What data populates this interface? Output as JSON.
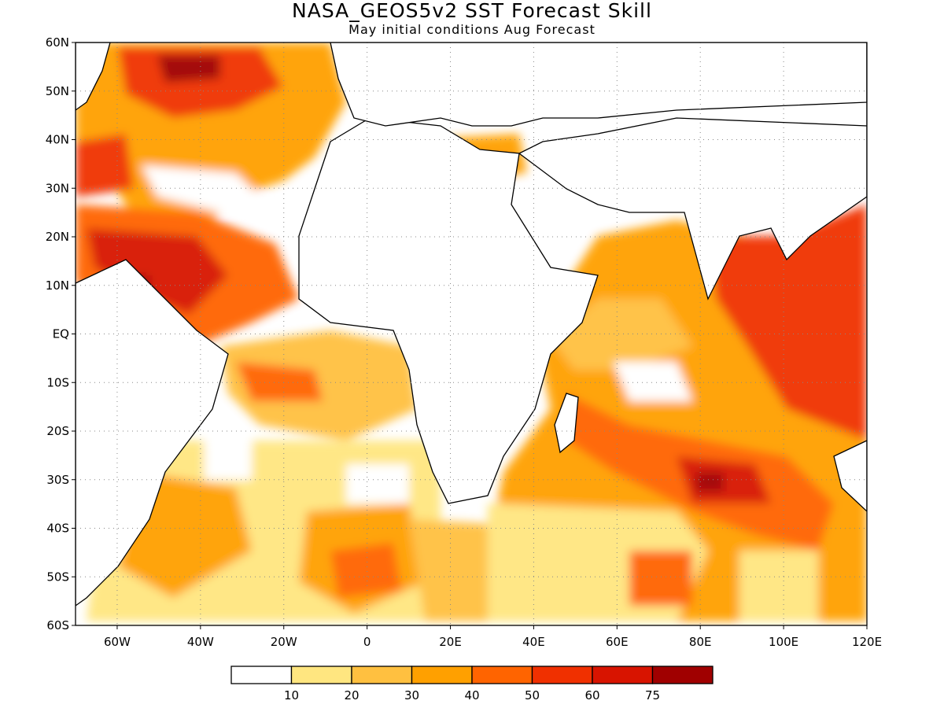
{
  "title": "NASA_GEOS5v2 SST Forecast Skill",
  "subtitle": "May initial conditions  Aug Forecast",
  "map": {
    "lat_ticks": [
      "60N",
      "50N",
      "40N",
      "30N",
      "20N",
      "10N",
      "EQ",
      "10S",
      "20S",
      "30S",
      "40S",
      "50S",
      "60S"
    ],
    "lon_ticks": [
      "60W",
      "40W",
      "20W",
      "0",
      "20E",
      "40E",
      "60E",
      "80E",
      "100E",
      "120E"
    ],
    "lon_range": [
      -70,
      120
    ],
    "lat_range": [
      -60,
      60
    ],
    "grid": true
  },
  "colorbar": {
    "labels": [
      "10",
      "20",
      "30",
      "40",
      "50",
      "60",
      "75"
    ],
    "colors": [
      "#ffffff",
      "#ffe680",
      "#ffc040",
      "#ffa000",
      "#ff6400",
      "#f03000",
      "#d81400",
      "#a00000"
    ]
  }
}
